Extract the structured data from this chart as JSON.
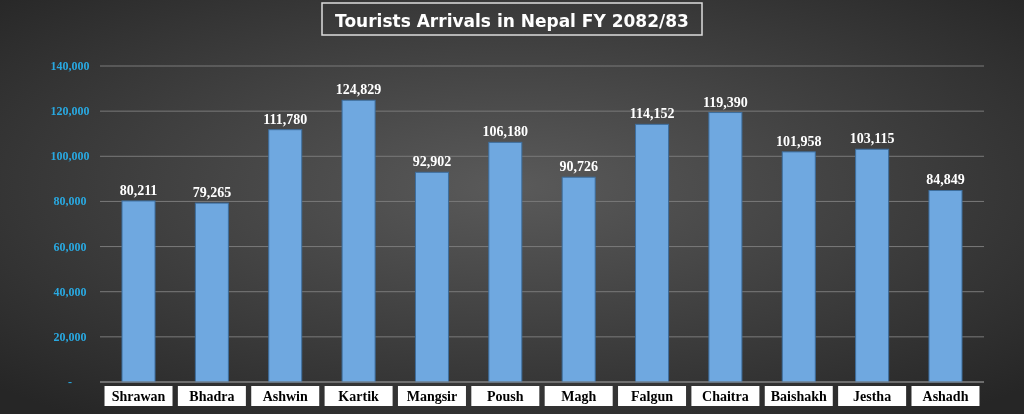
{
  "chart_data": {
    "type": "bar",
    "title": "Tourists Arrivals in Nepal FY 2082/83",
    "categories": [
      "Shrawan",
      "Bhadra",
      "Ashwin",
      "Kartik",
      "Mangsir",
      "Poush",
      "Magh",
      "Falgun",
      "Chaitra",
      "Baishakh",
      "Jestha",
      "Ashadh"
    ],
    "values": [
      80211,
      79265,
      111780,
      124829,
      92902,
      106180,
      90726,
      114152,
      119390,
      101958,
      103115,
      84849
    ],
    "color": "#6fa8e0",
    "ylim": [
      0,
      140000
    ],
    "yticks": [
      {
        "value": 0,
        "label": "-"
      },
      {
        "value": 20000,
        "label": "20,000"
      },
      {
        "value": 40000,
        "label": "40,000"
      },
      {
        "value": 60000,
        "label": "60,000"
      },
      {
        "value": 80000,
        "label": "80,000"
      },
      {
        "value": 100000,
        "label": "100,000"
      },
      {
        "value": 120000,
        "label": "120,000"
      },
      {
        "value": 140000,
        "label": "140,000"
      }
    ],
    "value_labels": [
      "80,211",
      "79,265",
      "111,780",
      "124,829",
      "92,902",
      "106,180",
      "90,726",
      "114,152",
      "119,390",
      "101,958",
      "103,115",
      "84,849"
    ],
    "grid": "y"
  }
}
